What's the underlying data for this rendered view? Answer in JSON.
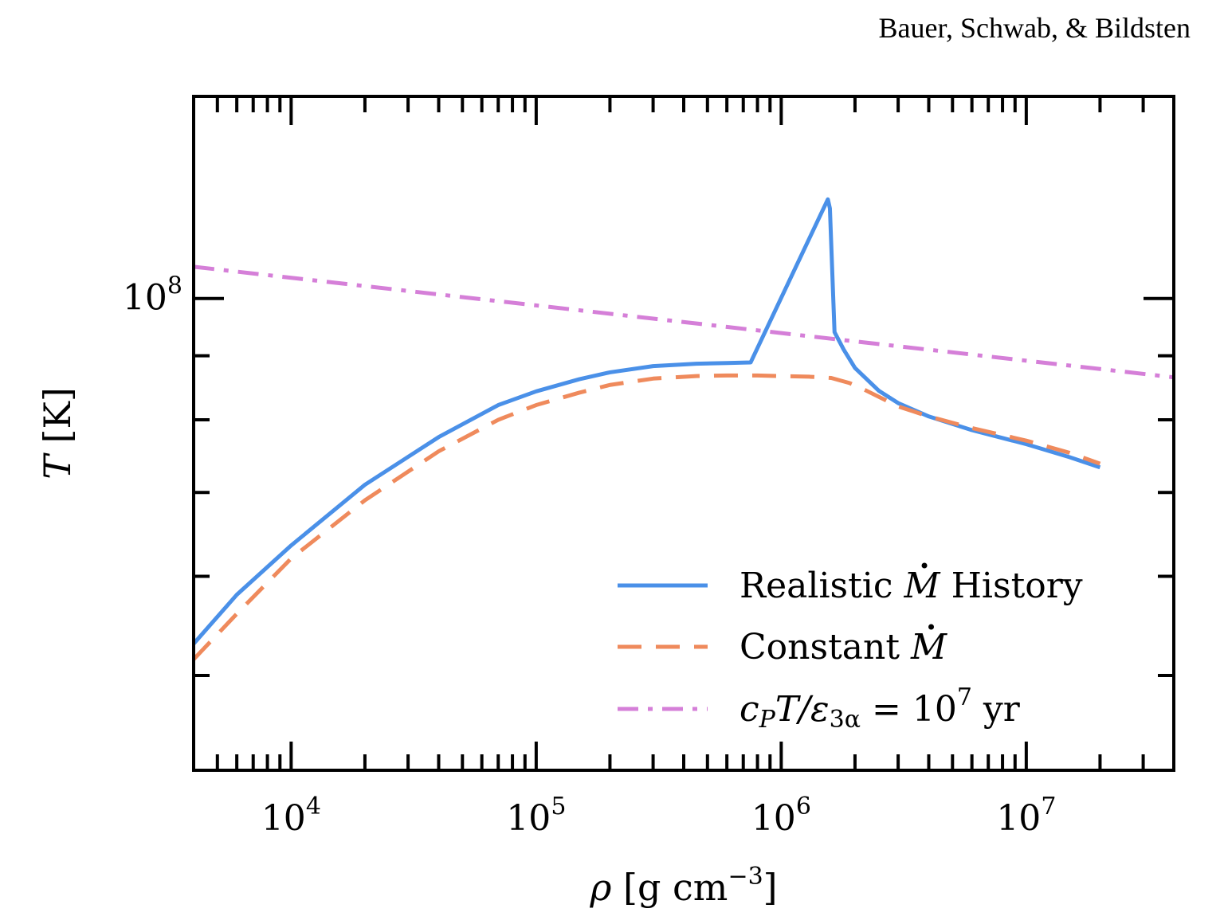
{
  "header": {
    "credit": "Bauer, Schwab, & Bildsten"
  },
  "chart_data": {
    "type": "line",
    "title": "",
    "xlabel": "ρ [g cm⁻³]",
    "ylabel": "T [K]",
    "xscale": "log",
    "yscale": "log",
    "xlim": [
      4000,
      40000000
    ],
    "ylim": [
      42000000,
      145000000
    ],
    "x_tick_labels": [
      {
        "value": 10000,
        "base": "10",
        "exp": "4"
      },
      {
        "value": 100000,
        "base": "10",
        "exp": "5"
      },
      {
        "value": 1000000,
        "base": "10",
        "exp": "6"
      },
      {
        "value": 10000000,
        "base": "10",
        "exp": "7"
      }
    ],
    "y_tick_labels": [
      {
        "value": 100000000,
        "base": "10",
        "exp": "8"
      }
    ],
    "y_minor_ticks": [
      50000000,
      60000000,
      70000000,
      80000000,
      90000000
    ],
    "grid": false,
    "legend_position": "lower-right",
    "colors": {
      "realistic": "#4a90e8",
      "constant": "#ef8a5c",
      "timescale": "#d57fd8"
    },
    "series": [
      {
        "name": "Realistic Ṁ History",
        "style": "solid",
        "x": [
          4000,
          6000,
          10000,
          20000,
          40000,
          70000,
          100000,
          150000,
          200000,
          300000,
          450000,
          600000,
          750000,
          1550000,
          1580000,
          1650000,
          1800000,
          2000000,
          2500000,
          3000000,
          4000000,
          6000000,
          10000000,
          15000000,
          20000000
        ],
        "y": [
          53000000,
          58000000,
          63500000,
          71000000,
          77500000,
          82200000,
          84300000,
          86200000,
          87300000,
          88300000,
          88700000,
          88800000,
          88900000,
          120000000,
          118000000,
          94000000,
          91000000,
          88000000,
          84400000,
          82500000,
          80500000,
          78500000,
          76500000,
          74700000,
          73300000
        ]
      },
      {
        "name": "Constant Ṁ",
        "style": "dashed",
        "x": [
          4000,
          6000,
          10000,
          20000,
          40000,
          70000,
          100000,
          150000,
          200000,
          300000,
          450000,
          600000,
          800000,
          1000000,
          1300000,
          1600000,
          1900000,
          2200000,
          3000000,
          4000000,
          6000000,
          10000000,
          15000000,
          20000000
        ],
        "y": [
          51500000,
          56000000,
          62000000,
          69000000,
          75500000,
          80000000,
          82200000,
          84100000,
          85300000,
          86300000,
          86700000,
          86800000,
          86800000,
          86700000,
          86600000,
          86400000,
          85600000,
          84500000,
          82000000,
          80500000,
          78800000,
          77000000,
          75300000,
          73800000
        ]
      },
      {
        "name": "c_P T/ε_3α = 10⁷ yr",
        "style": "dashdot",
        "x": [
          4000,
          40000000
        ],
        "y": [
          106000000,
          86500000
        ]
      }
    ],
    "legend_labels": {
      "realistic": {
        "pre": "Realistic ",
        "sym": "M",
        "post": " History"
      },
      "constant": {
        "pre": "Constant ",
        "sym": "M",
        "post": ""
      },
      "timescale": {
        "c": "c",
        "c_sub": "P",
        "t": "T/",
        "eps": "ε",
        "eps_sub": "3α",
        "eq": " = 10",
        "exp": "7",
        "unit": " yr"
      }
    },
    "axis_label_parts": {
      "x": {
        "rho": "ρ",
        "open": " [g cm",
        "exp": "−3",
        "close": "]"
      },
      "y": {
        "t": "T",
        "unit": " [K]"
      }
    }
  }
}
